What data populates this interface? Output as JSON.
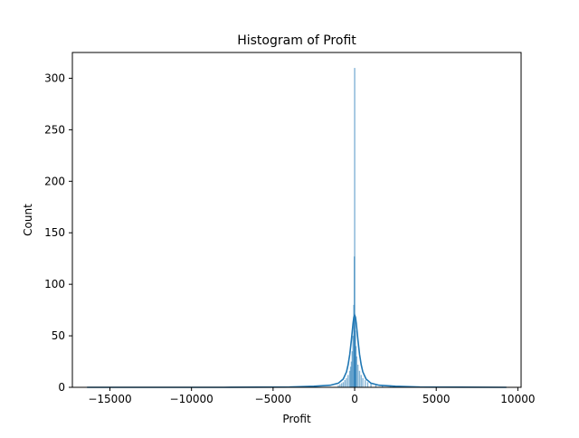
{
  "chart_data": {
    "type": "histogram",
    "title": "Histogram of Profit",
    "xlabel": "Profit",
    "ylabel": "Count",
    "xlim": [
      -17300,
      10200
    ],
    "ylim": [
      0,
      325
    ],
    "xticks": [
      -15000,
      -10000,
      -5000,
      0,
      5000,
      10000
    ],
    "xtick_labels": [
      "−15000",
      "−10000",
      "−5000",
      "0",
      "5000",
      "10000"
    ],
    "yticks": [
      0,
      50,
      100,
      150,
      200,
      250,
      300
    ],
    "ytick_labels": [
      "0",
      "50",
      "100",
      "150",
      "200",
      "250",
      "300"
    ],
    "bar_color": "#1f77b4",
    "kde_color": "#1f77b4",
    "bars": [
      {
        "x": -1000,
        "y": 2
      },
      {
        "x": -900,
        "y": 3
      },
      {
        "x": -800,
        "y": 4
      },
      {
        "x": -700,
        "y": 5
      },
      {
        "x": -600,
        "y": 7
      },
      {
        "x": -500,
        "y": 9
      },
      {
        "x": -400,
        "y": 12
      },
      {
        "x": -300,
        "y": 16
      },
      {
        "x": -250,
        "y": 20
      },
      {
        "x": -200,
        "y": 25
      },
      {
        "x": -150,
        "y": 35
      },
      {
        "x": -100,
        "y": 50
      },
      {
        "x": -50,
        "y": 80
      },
      {
        "x": -20,
        "y": 127
      },
      {
        "x": 0,
        "y": 310
      },
      {
        "x": 20,
        "y": 70
      },
      {
        "x": 40,
        "y": 55
      },
      {
        "x": 80,
        "y": 40
      },
      {
        "x": 120,
        "y": 30
      },
      {
        "x": 200,
        "y": 22
      },
      {
        "x": 300,
        "y": 16
      },
      {
        "x": 400,
        "y": 12
      },
      {
        "x": 500,
        "y": 9
      },
      {
        "x": 650,
        "y": 7
      },
      {
        "x": 800,
        "y": 5
      },
      {
        "x": 1000,
        "y": 4
      },
      {
        "x": 1300,
        "y": 3
      },
      {
        "x": 1700,
        "y": 2
      },
      {
        "x": 2200,
        "y": 2
      },
      {
        "x": 2800,
        "y": 1
      }
    ],
    "kde": {
      "x": [
        -16400,
        -8000,
        -4000,
        -2500,
        -1500,
        -1000,
        -700,
        -500,
        -400,
        -300,
        -200,
        -100,
        -50,
        0,
        50,
        100,
        200,
        300,
        400,
        500,
        700,
        1000,
        1500,
        2500,
        4000,
        9300
      ],
      "y": [
        0,
        0,
        0.3,
        1,
        2,
        4,
        8,
        15,
        22,
        32,
        46,
        62,
        68,
        70,
        68,
        62,
        46,
        32,
        22,
        15,
        8,
        4,
        2,
        1,
        0.3,
        0
      ]
    }
  }
}
